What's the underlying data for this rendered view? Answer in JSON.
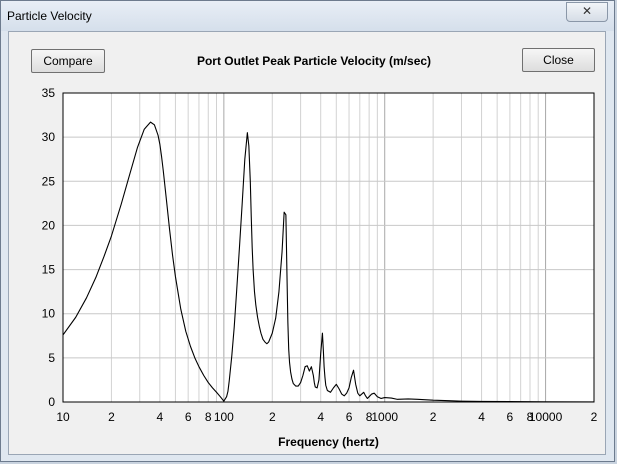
{
  "window": {
    "title": "Particle Velocity",
    "close_glyph": "✕"
  },
  "toolbar": {
    "compare_label": "Compare",
    "close_label": "Close"
  },
  "chart_data": {
    "type": "line",
    "title": "Port Outlet Peak Particle Velocity (m/sec)",
    "xlabel": "Frequency (hertz)",
    "ylabel": "",
    "x_scale": "log",
    "xlim": [
      10,
      20000
    ],
    "ylim": [
      0,
      35
    ],
    "grid": true,
    "y_ticks": [
      "0",
      "5",
      "10",
      "15",
      "20",
      "25",
      "30",
      "35"
    ],
    "x_ticks": [
      {
        "v": 10,
        "label": "10"
      },
      {
        "v": 20,
        "label": "2"
      },
      {
        "v": 40,
        "label": "4"
      },
      {
        "v": 60,
        "label": "6"
      },
      {
        "v": 80,
        "label": "8"
      },
      {
        "v": 100,
        "label": "100"
      },
      {
        "v": 200,
        "label": "2"
      },
      {
        "v": 400,
        "label": "4"
      },
      {
        "v": 600,
        "label": "6"
      },
      {
        "v": 800,
        "label": "8"
      },
      {
        "v": 1000,
        "label": "1000"
      },
      {
        "v": 2000,
        "label": "2"
      },
      {
        "v": 4000,
        "label": "4"
      },
      {
        "v": 6000,
        "label": "6"
      },
      {
        "v": 8000,
        "label": "8"
      },
      {
        "v": 10000,
        "label": "10000"
      },
      {
        "v": 20000,
        "label": "2"
      }
    ],
    "series": [
      {
        "name": "",
        "color": "#000000",
        "x": [
          10,
          12,
          14,
          16,
          18,
          20,
          23,
          26,
          29,
          32,
          35,
          37,
          39,
          40,
          41,
          42,
          44,
          46,
          48,
          50,
          54,
          58,
          62,
          66,
          70,
          75,
          80,
          85,
          90,
          95,
          100,
          104,
          106,
          108,
          112,
          116,
          120,
          125,
          130,
          135,
          140,
          143,
          146,
          148,
          150,
          152,
          155,
          158,
          162,
          166,
          170,
          175,
          180,
          185,
          190,
          200,
          210,
          220,
          230,
          237,
          243,
          247,
          250,
          253,
          256,
          260,
          265,
          270,
          280,
          290,
          300,
          310,
          320,
          330,
          340,
          350,
          360,
          365,
          370,
          380,
          390,
          400,
          410,
          415,
          420,
          425,
          430,
          440,
          460,
          480,
          500,
          520,
          540,
          560,
          580,
          600,
          620,
          640,
          660,
          680,
          700,
          720,
          740,
          760,
          780,
          800,
          830,
          860,
          900,
          950,
          1000,
          1100,
          1200,
          1400,
          1600,
          2000,
          2500,
          3000,
          4000,
          6000,
          10000,
          20000
        ],
        "values": [
          7.6,
          9.6,
          11.8,
          14.1,
          16.5,
          18.8,
          22.4,
          25.8,
          28.8,
          30.9,
          31.7,
          31.4,
          30.2,
          29.2,
          27.8,
          26.2,
          22.8,
          19.5,
          16.6,
          14.2,
          10.5,
          8.0,
          6.3,
          5.0,
          4.0,
          3.0,
          2.2,
          1.6,
          1.1,
          0.6,
          0.1,
          0.6,
          1.2,
          2.4,
          5.2,
          8.5,
          12.5,
          17.5,
          22.5,
          27.5,
          30.5,
          29.0,
          25.0,
          21.0,
          17.5,
          15.0,
          12.5,
          11.0,
          9.6,
          8.6,
          7.8,
          7.1,
          6.8,
          6.6,
          6.8,
          7.8,
          9.5,
          12.5,
          17.0,
          21.5,
          21.2,
          14.0,
          9.0,
          6.0,
          4.5,
          3.4,
          2.6,
          2.1,
          1.8,
          1.8,
          2.2,
          3.0,
          4.0,
          4.1,
          3.5,
          4.0,
          3.0,
          2.2,
          1.7,
          1.6,
          2.5,
          5.5,
          7.8,
          6.0,
          4.0,
          2.8,
          1.9,
          1.3,
          1.1,
          1.6,
          2.0,
          1.5,
          0.9,
          0.7,
          1.0,
          1.6,
          2.8,
          3.6,
          2.0,
          1.0,
          0.7,
          0.9,
          1.1,
          0.7,
          0.4,
          0.6,
          0.9,
          1.0,
          0.6,
          0.4,
          0.5,
          0.45,
          0.3,
          0.35,
          0.3,
          0.2,
          0.15,
          0.1,
          0.07,
          0.05,
          0.02,
          0.01
        ]
      }
    ]
  }
}
